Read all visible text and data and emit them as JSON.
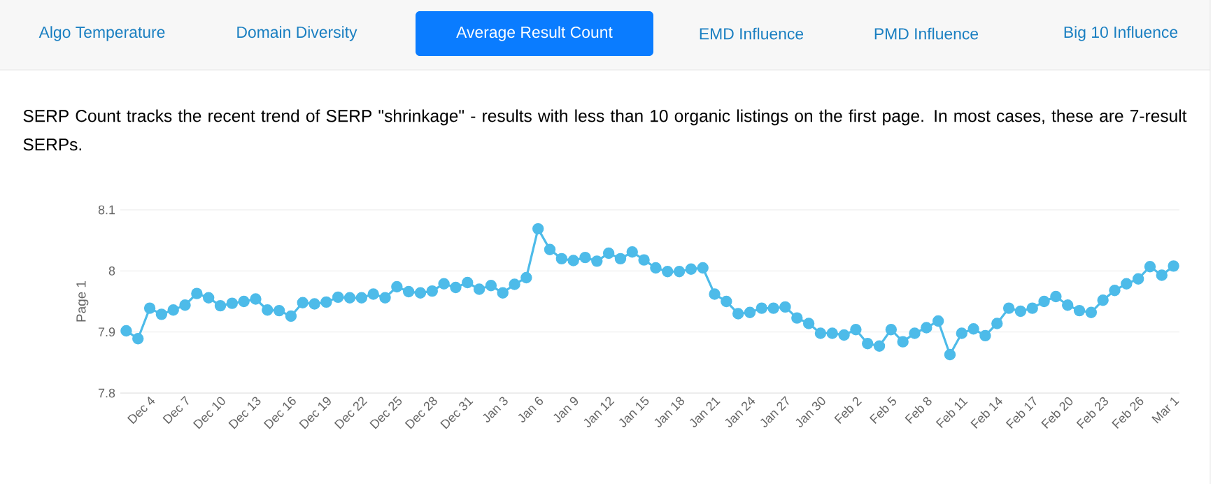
{
  "chart_data": {
    "type": "line",
    "title": "SERP Count tracks the recent trend of SERP \"shrinkage\" - results with less than 10 organic listings on the first page. In most cases, these are 7-result SERPs.",
    "ylabel": "Page 1",
    "annotations": [
      "Algo Temperature",
      "Domain Diversity",
      "Average Result Count",
      "EMD Influence",
      "PMD Influence",
      "Big 10 Influence"
    ],
    "categories": [
      null,
      null,
      "Dec 4",
      null,
      null,
      "Dec 7",
      null,
      null,
      "Dec 10",
      null,
      null,
      "Dec 13",
      null,
      null,
      "Dec 16",
      null,
      null,
      "Dec 19",
      null,
      null,
      "Dec 22",
      null,
      null,
      "Dec 25",
      null,
      null,
      "Dec 28",
      null,
      null,
      "Dec 31",
      null,
      null,
      "Jan 3",
      null,
      null,
      "Jan 6",
      null,
      null,
      "Jan 9",
      null,
      null,
      "Jan 12",
      null,
      null,
      "Jan 15",
      null,
      null,
      "Jan 18",
      null,
      null,
      "Jan 21",
      null,
      null,
      "Jan 24",
      null,
      null,
      "Jan 27",
      null,
      null,
      "Jan 30",
      null,
      null,
      "Feb 2",
      null,
      null,
      "Feb 5",
      null,
      null,
      "Feb 8",
      null,
      null,
      "Feb 11",
      null,
      null,
      "Feb 14",
      null,
      null,
      "Feb 17",
      null,
      null,
      "Feb 20",
      null,
      null,
      "Feb 23",
      null,
      null,
      "Feb 26",
      null,
      null,
      "Mar 1"
    ],
    "series": [
      {
        "color": "#4dbbe9",
        "values": [
          7.902,
          7.889,
          7.939,
          7.929,
          7.936,
          7.944,
          7.963,
          7.956,
          7.943,
          7.947,
          7.95,
          7.954,
          7.936,
          7.935,
          7.926,
          7.948,
          7.946,
          7.949,
          7.957,
          7.956,
          7.956,
          7.962,
          7.956,
          7.974,
          7.966,
          7.964,
          7.967,
          7.979,
          7.973,
          7.981,
          7.97,
          7.976,
          7.964,
          7.978,
          7.989,
          8.069,
          8.035,
          8.02,
          8.017,
          8.022,
          8.016,
          8.029,
          8.02,
          8.031,
          8.018,
          8.005,
          7.999,
          7.999,
          8.003,
          8.005,
          7.962,
          7.95,
          7.93,
          7.932,
          7.939,
          7.939,
          7.941,
          7.923,
          7.914,
          7.898,
          7.898,
          7.895,
          7.904,
          7.881,
          7.877,
          7.904,
          7.884,
          7.898,
          7.907,
          7.918,
          7.863,
          7.898,
          7.905,
          7.894,
          7.914,
          7.939,
          7.934,
          7.939,
          7.95,
          7.958,
          7.944,
          7.935,
          7.932,
          7.952,
          7.968,
          7.979,
          7.987,
          8.007,
          7.993,
          8.008
        ]
      }
    ],
    "ylim": [
      7.8,
      8.1
    ],
    "yticks": [
      7.8,
      7.9,
      8,
      8.1
    ],
    "grid": "y",
    "marker": "circle",
    "line_style": "solid"
  }
}
